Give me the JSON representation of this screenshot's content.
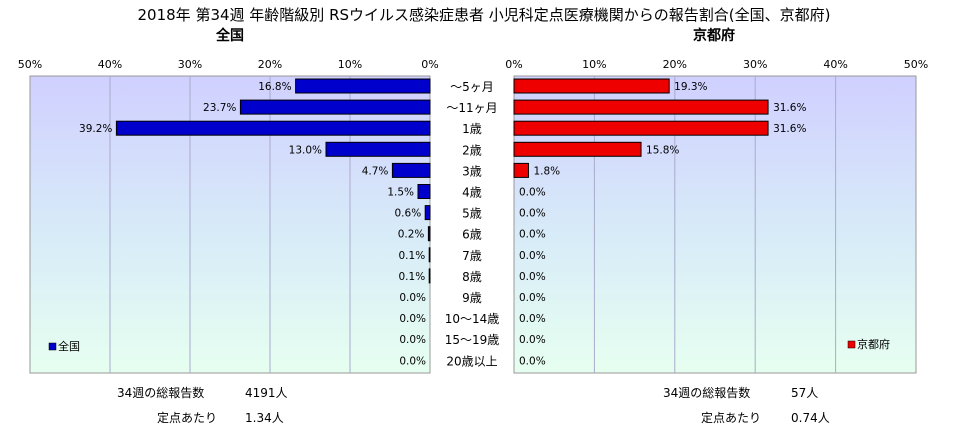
{
  "title": "2018年 第34週 年齢階級別 RSウイルス感染症患者 小児科定点医療機関からの報告割合(全国、京都府)",
  "left_panel": {
    "subtitle": "全国",
    "legend": "全国",
    "color": "#0000cc"
  },
  "right_panel": {
    "subtitle": "京都府",
    "legend": "京都府",
    "color": "#ee0000"
  },
  "left_ticks": [
    "50%",
    "40%",
    "30%",
    "20%",
    "10%",
    "0%"
  ],
  "right_ticks": [
    "0%",
    "10%",
    "20%",
    "30%",
    "40%",
    "50%"
  ],
  "chart_data": {
    "type": "bar",
    "orientation": "horizontal-back-to-back",
    "categories": [
      "～5ヶ月",
      "～11ヶ月",
      "1歳",
      "2歳",
      "3歳",
      "4歳",
      "5歳",
      "6歳",
      "7歳",
      "8歳",
      "9歳",
      "10～14歳",
      "15～19歳",
      "20歳以上"
    ],
    "series": [
      {
        "name": "全国",
        "values": [
          16.8,
          23.7,
          39.2,
          13.0,
          4.7,
          1.5,
          0.6,
          0.2,
          0.1,
          0.1,
          0.0,
          0.0,
          0.0,
          0.0
        ],
        "labels": [
          "16.8%",
          "23.7%",
          "39.2%",
          "13.0%",
          "4.7%",
          "1.5%",
          "0.6%",
          "0.2%",
          "0.1%",
          "0.1%",
          "0.0%",
          "0.0%",
          "0.0%",
          "0.0%"
        ]
      },
      {
        "name": "京都府",
        "values": [
          19.3,
          31.6,
          31.6,
          15.8,
          1.8,
          0.0,
          0.0,
          0.0,
          0.0,
          0.0,
          0.0,
          0.0,
          0.0,
          0.0
        ],
        "labels": [
          "19.3%",
          "31.6%",
          "31.6%",
          "15.8%",
          "1.8%",
          "0.0%",
          "0.0%",
          "0.0%",
          "0.0%",
          "0.0%",
          "0.0%",
          "0.0%",
          "0.0%",
          "0.0%"
        ]
      }
    ],
    "xlim": [
      0,
      50
    ],
    "grid": true,
    "legend_placement": "bottom-left / bottom-right"
  },
  "footer": {
    "left": {
      "total_label": "34週の総報告数",
      "total_value": "4191人",
      "per_label": "定点あたり",
      "per_value": "1.34人"
    },
    "right": {
      "total_label": "34週の総報告数",
      "total_value": "57人",
      "per_label": "定点あたり",
      "per_value": "0.74人"
    }
  }
}
